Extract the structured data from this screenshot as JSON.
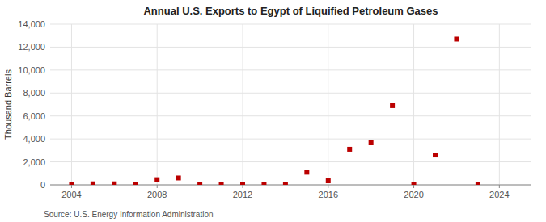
{
  "chart_data": {
    "type": "scatter",
    "title": "Annual U.S. Exports to Egypt of Liquified Petroleum Gases",
    "y_label": "Thousand Barrels",
    "source": "Source: U.S. Energy Information Administration",
    "x": [
      2004,
      2005,
      2006,
      2007,
      2008,
      2009,
      2010,
      2011,
      2012,
      2013,
      2014,
      2015,
      2016,
      2017,
      2018,
      2019,
      2020,
      2021,
      2022,
      2023
    ],
    "values": [
      15,
      90,
      90,
      50,
      450,
      600,
      5,
      5,
      20,
      5,
      5,
      1100,
      350,
      3100,
      3700,
      6900,
      10,
      2600,
      12700,
      10
    ],
    "color": "#bb0000",
    "marker": "square",
    "xlim": [
      2003.0,
      2025.5
    ],
    "ylim": [
      0,
      14000
    ],
    "xticks": [
      2004,
      2008,
      2012,
      2016,
      2020,
      2024
    ],
    "yticks": [
      0,
      {
        "value": 2000,
        "label": "2,000"
      },
      {
        "value": 4000,
        "label": "4,000"
      },
      {
        "value": 6000,
        "label": "6,000"
      },
      {
        "value": 8000,
        "label": "8,000"
      },
      {
        "value": 10000,
        "label": "10,000"
      },
      {
        "value": 12000,
        "label": "12,000"
      },
      {
        "value": 14000,
        "label": "14,000"
      }
    ],
    "grid": true
  }
}
